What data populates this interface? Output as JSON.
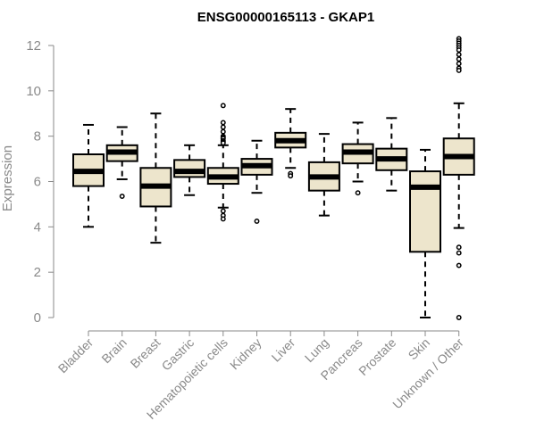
{
  "chart_data": {
    "type": "boxplot",
    "title": "ENSG00000165113 - GKAP1",
    "ylabel": "Expression",
    "ylim": [
      0,
      12
    ],
    "yticks": [
      0,
      2,
      4,
      6,
      8,
      10,
      12
    ],
    "grid": false,
    "box_color": "#ede5cc",
    "categories": [
      "Bladder",
      "Brain",
      "Breast",
      "Gastric",
      "Hematopoietic cells",
      "Kidney",
      "Liver",
      "Lung",
      "Pancreas",
      "Prostate",
      "Skin",
      "Unknown / Other"
    ],
    "boxes": [
      {
        "min": 4.0,
        "q1": 5.8,
        "median": 6.45,
        "q3": 7.2,
        "max": 8.5,
        "outliers": []
      },
      {
        "min": 6.1,
        "q1": 6.9,
        "median": 7.3,
        "q3": 7.6,
        "max": 8.4,
        "outliers": [
          5.35
        ]
      },
      {
        "min": 3.3,
        "q1": 4.9,
        "median": 5.8,
        "q3": 6.6,
        "max": 9.0,
        "outliers": []
      },
      {
        "min": 5.4,
        "q1": 6.2,
        "median": 6.45,
        "q3": 6.95,
        "max": 7.6,
        "outliers": []
      },
      {
        "min": 4.85,
        "q1": 5.9,
        "median": 6.2,
        "q3": 6.6,
        "max": 7.6,
        "outliers": [
          9.35,
          8.6,
          8.4,
          8.2,
          8.0,
          7.95,
          7.9,
          7.8,
          7.75,
          7.7,
          4.7,
          4.5,
          4.35
        ]
      },
      {
        "min": 5.5,
        "q1": 6.3,
        "median": 6.7,
        "q3": 7.0,
        "max": 7.8,
        "outliers": [
          4.25
        ]
      },
      {
        "min": 6.6,
        "q1": 7.5,
        "median": 7.8,
        "q3": 8.15,
        "max": 9.2,
        "outliers": [
          6.35,
          6.25
        ]
      },
      {
        "min": 4.5,
        "q1": 5.6,
        "median": 6.2,
        "q3": 6.85,
        "max": 8.1,
        "outliers": []
      },
      {
        "min": 6.0,
        "q1": 6.8,
        "median": 7.3,
        "q3": 7.65,
        "max": 8.6,
        "outliers": [
          5.5
        ]
      },
      {
        "min": 5.6,
        "q1": 6.5,
        "median": 7.0,
        "q3": 7.45,
        "max": 8.8,
        "outliers": []
      },
      {
        "min": 0.0,
        "q1": 2.9,
        "median": 5.75,
        "q3": 6.45,
        "max": 7.4,
        "outliers": []
      },
      {
        "min": 3.95,
        "q1": 6.3,
        "median": 7.1,
        "q3": 7.9,
        "max": 9.45,
        "outliers": [
          12.3,
          12.2,
          12.1,
          12.0,
          11.9,
          11.8,
          11.6,
          11.4,
          11.2,
          11.0,
          10.9,
          3.1,
          2.85,
          2.3,
          0.0
        ]
      }
    ]
  }
}
